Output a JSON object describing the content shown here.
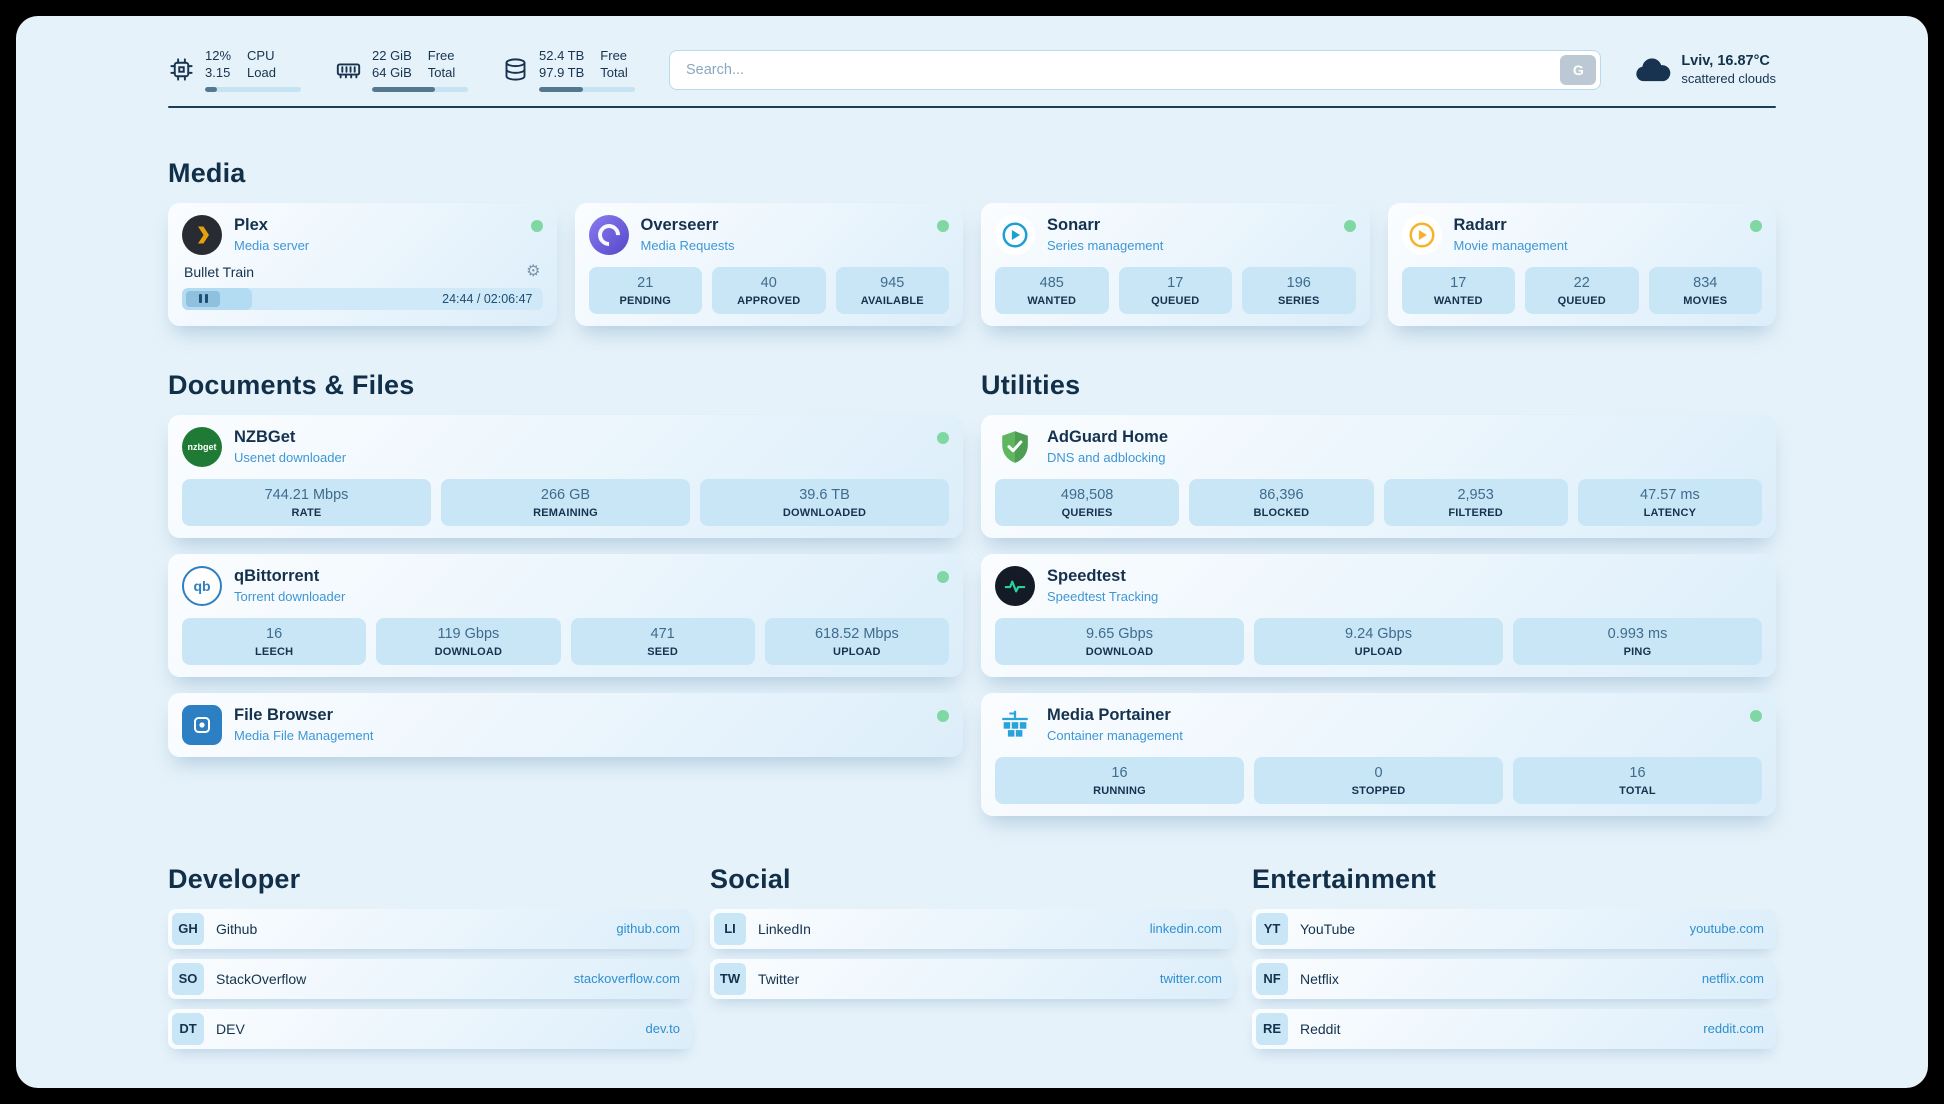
{
  "theme": {
    "panel_bg": "#e6f2fa",
    "accent_blue": "#2e8fd0",
    "status_online_green": "#7fd8a4",
    "text_navy": "#14324d",
    "stat_box_blue": "#c9e6f7"
  },
  "topbar": {
    "cpu": {
      "line1": "12%",
      "line2": "3.15",
      "label_line1": "CPU",
      "label_line2": "Load",
      "fill": 12
    },
    "ram": {
      "line1": "22 GiB",
      "line2": "64 GiB",
      "label_line1": "Free",
      "label_line2": "Total",
      "fill": 66
    },
    "disk": {
      "line1": "52.4 TB",
      "line2": "97.9 TB",
      "label_line1": "Free",
      "label_line2": "Total",
      "fill": 46
    },
    "search": {
      "placeholder": "Search...",
      "button_label": "G"
    },
    "weather": {
      "location": "Lviv, 16.87°C",
      "condition": "scattered clouds"
    }
  },
  "media": {
    "title": "Media",
    "plex": {
      "name": "Plex",
      "subtitle": "Media server",
      "now_playing": "Bullet Train",
      "time": "24:44 / 02:06:47",
      "progress_percent": 19.5,
      "online": true
    },
    "overseerr": {
      "name": "Overseerr",
      "subtitle": "Media Requests",
      "online": true,
      "stats": [
        {
          "value": "21",
          "label": "PENDING"
        },
        {
          "value": "40",
          "label": "APPROVED"
        },
        {
          "value": "945",
          "label": "AVAILABLE"
        }
      ]
    },
    "sonarr": {
      "name": "Sonarr",
      "subtitle": "Series management",
      "online": true,
      "stats": [
        {
          "value": "485",
          "label": "WANTED"
        },
        {
          "value": "17",
          "label": "QUEUED"
        },
        {
          "value": "196",
          "label": "SERIES"
        }
      ]
    },
    "radarr": {
      "name": "Radarr",
      "subtitle": "Movie management",
      "online": true,
      "stats": [
        {
          "value": "17",
          "label": "WANTED"
        },
        {
          "value": "22",
          "label": "QUEUED"
        },
        {
          "value": "834",
          "label": "MOVIES"
        }
      ]
    }
  },
  "documents": {
    "title": "Documents & Files",
    "nzbget": {
      "name": "NZBGet",
      "subtitle": "Usenet downloader",
      "online": true,
      "icon_text": "nzbget",
      "stats": [
        {
          "value": "744.21 Mbps",
          "label": "RATE"
        },
        {
          "value": "266 GB",
          "label": "REMAINING"
        },
        {
          "value": "39.6 TB",
          "label": "DOWNLOADED"
        }
      ]
    },
    "qbittorrent": {
      "name": "qBittorrent",
      "subtitle": "Torrent downloader",
      "online": true,
      "icon_text": "qb",
      "stats": [
        {
          "value": "16",
          "label": "LEECH"
        },
        {
          "value": "119 Gbps",
          "label": "DOWNLOAD"
        },
        {
          "value": "471",
          "label": "SEED"
        },
        {
          "value": "618.52 Mbps",
          "label": "UPLOAD"
        }
      ]
    },
    "filebrowser": {
      "name": "File Browser",
      "subtitle": "Media File Management",
      "online": true
    }
  },
  "utilities": {
    "title": "Utilities",
    "adguard": {
      "name": "AdGuard Home",
      "subtitle": "DNS and adblocking",
      "stats": [
        {
          "value": "498,508",
          "label": "QUERIES"
        },
        {
          "value": "86,396",
          "label": "BLOCKED"
        },
        {
          "value": "2,953",
          "label": "FILTERED"
        },
        {
          "value": "47.57 ms",
          "label": "LATENCY"
        }
      ]
    },
    "speedtest": {
      "name": "Speedtest",
      "subtitle": "Speedtest Tracking",
      "stats": [
        {
          "value": "9.65 Gbps",
          "label": "DOWNLOAD"
        },
        {
          "value": "9.24 Gbps",
          "label": "UPLOAD"
        },
        {
          "value": "0.993 ms",
          "label": "PING"
        }
      ]
    },
    "portainer": {
      "name": "Media Portainer",
      "subtitle": "Container management",
      "online": true,
      "stats": [
        {
          "value": "16",
          "label": "RUNNING"
        },
        {
          "value": "0",
          "label": "STOPPED"
        },
        {
          "value": "16",
          "label": "TOTAL"
        }
      ]
    }
  },
  "links": {
    "developer": {
      "title": "Developer",
      "items": [
        {
          "abbr": "GH",
          "name": "Github",
          "url": "github.com"
        },
        {
          "abbr": "SO",
          "name": "StackOverflow",
          "url": "stackoverflow.com"
        },
        {
          "abbr": "DT",
          "name": "DEV",
          "url": "dev.to"
        }
      ]
    },
    "social": {
      "title": "Social",
      "items": [
        {
          "abbr": "LI",
          "name": "LinkedIn",
          "url": "linkedin.com"
        },
        {
          "abbr": "TW",
          "name": "Twitter",
          "url": "twitter.com"
        }
      ]
    },
    "entertainment": {
      "title": "Entertainment",
      "items": [
        {
          "abbr": "YT",
          "name": "YouTube",
          "url": "youtube.com"
        },
        {
          "abbr": "NF",
          "name": "Netflix",
          "url": "netflix.com"
        },
        {
          "abbr": "RE",
          "name": "Reddit",
          "url": "reddit.com"
        }
      ]
    }
  }
}
